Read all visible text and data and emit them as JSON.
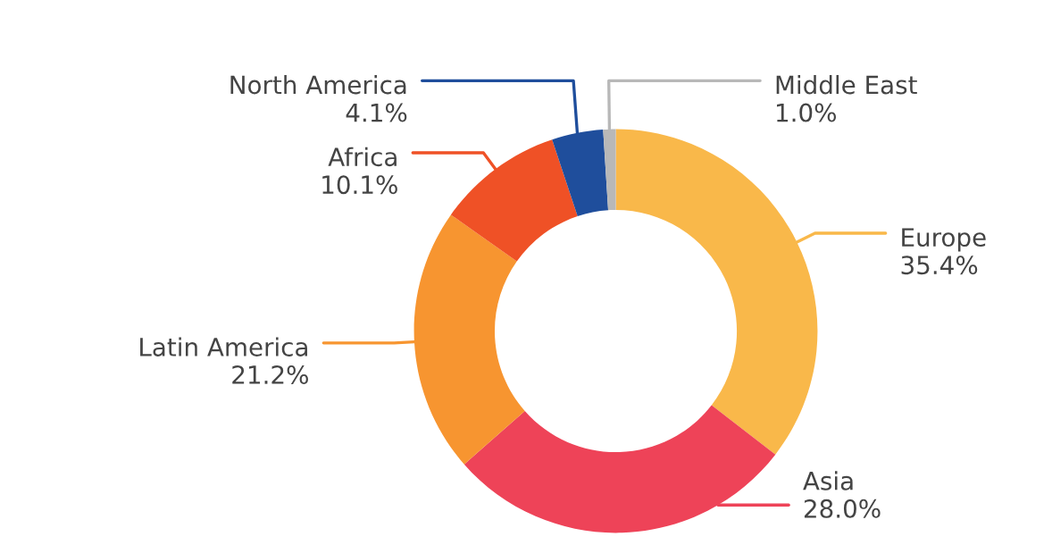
{
  "chart_data": {
    "type": "donut",
    "categories": [
      "Europe",
      "Asia",
      "Latin America",
      "Africa",
      "North America",
      "Middle East"
    ],
    "values": [
      35.4,
      28.0,
      21.2,
      10.1,
      4.1,
      1.0
    ],
    "value_labels": [
      "35.4%",
      "28.0%",
      "21.2%",
      "10.1%",
      "4.1%",
      "1.0%"
    ],
    "colors": [
      "#f9b84a",
      "#ee4358",
      "#f79530",
      "#ef5126",
      "#1f4e9c",
      "#b8b8b8"
    ],
    "legend": false
  }
}
